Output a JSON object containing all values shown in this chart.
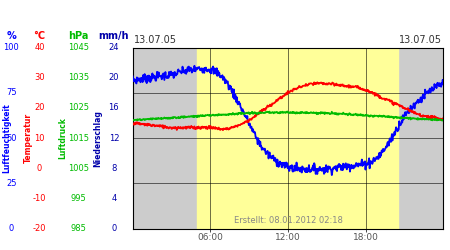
{
  "title_left": "13.07.05",
  "title_right": "13.07.05",
  "created_text": "Erstellt: 08.01.2012 02:18",
  "xtick_labels": [
    "06:00",
    "12:00",
    "18:00"
  ],
  "xtick_positions": [
    6,
    12,
    18
  ],
  "x_range": [
    0,
    24
  ],
  "yellow_span": [
    5.0,
    20.5
  ],
  "pct_range": [
    0,
    100
  ],
  "temp_range": [
    -20,
    40
  ],
  "hpa_range": [
    985,
    1045
  ],
  "mm_range": [
    0,
    24
  ],
  "axis_labels": {
    "pct_label": "%",
    "temp_label": "°C",
    "hpa_label": "hPa",
    "mm_label": "mm/h"
  },
  "ytick_pct": [
    0,
    25,
    50,
    75,
    100
  ],
  "ytick_temp": [
    -20,
    -10,
    0,
    10,
    20,
    30,
    40
  ],
  "ytick_hpa": [
    985,
    995,
    1005,
    1015,
    1025,
    1035,
    1045
  ],
  "ytick_mm": [
    0,
    4,
    8,
    12,
    16,
    20,
    24
  ],
  "colors": {
    "humidity": "#0000ff",
    "temperature": "#ff0000",
    "pressure": "#00bb00",
    "background": "#ffffff",
    "plot_bg_day": "#ffff99",
    "plot_bg_night": "#cccccc",
    "text_pct": "#0000ff",
    "text_temp": "#ff0000",
    "text_hpa": "#00bb00",
    "text_mm": "#0000aa",
    "date_color": "#555555",
    "created_color": "#888888"
  },
  "humidity_pts": [
    0,
    1,
    2,
    3,
    4,
    5,
    6,
    7,
    8,
    9,
    10,
    11,
    12,
    13,
    14,
    15,
    16,
    17,
    18,
    19,
    20,
    21,
    22,
    23,
    24
  ],
  "humidity_vals": [
    82,
    83,
    84,
    85,
    87,
    88,
    88,
    83,
    72,
    58,
    45,
    38,
    34,
    33,
    33,
    33,
    34,
    35,
    36,
    40,
    50,
    62,
    70,
    76,
    80
  ],
  "temp_pts": [
    0,
    1,
    2,
    3,
    4,
    5,
    6,
    7,
    8,
    9,
    10,
    11,
    12,
    13,
    14,
    15,
    16,
    17,
    18,
    19,
    20,
    21,
    22,
    23,
    24
  ],
  "temp_vals": [
    15,
    14.5,
    14,
    13.5,
    13.5,
    13.5,
    13.5,
    13,
    14,
    16,
    19,
    22,
    25,
    27,
    28,
    28,
    27.5,
    27,
    26,
    24,
    22,
    20,
    18,
    17,
    16
  ],
  "pres_pts": [
    0,
    1,
    2,
    3,
    4,
    5,
    6,
    7,
    8,
    9,
    10,
    11,
    12,
    13,
    14,
    15,
    16,
    17,
    18,
    19,
    20,
    21,
    22,
    23,
    24
  ],
  "pres_vals": [
    1021,
    1021,
    1021,
    1021,
    1021,
    1021,
    1021,
    1021,
    1021,
    1021,
    1021,
    1021,
    1021,
    1021,
    1021,
    1021,
    1021,
    1021,
    1021,
    1021,
    1021,
    1021,
    1021,
    1021,
    1021
  ]
}
